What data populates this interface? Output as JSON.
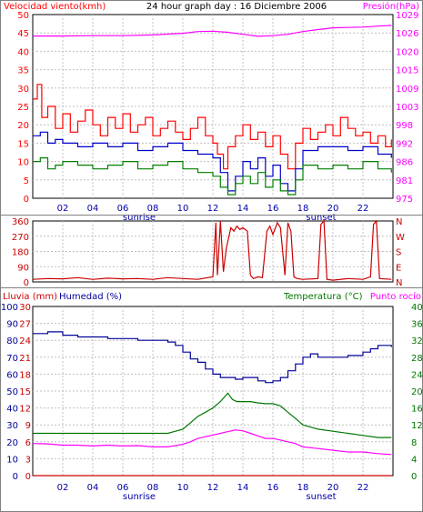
{
  "header": {
    "left_label": "Velocidad viento(kmh)",
    "title": "24 hour graph day : 16 Diciembre 2006",
    "right_label": "Presión(hPa)"
  },
  "colors": {
    "wind": "#ff0000",
    "wind_avg": "#0000cc",
    "wind_low": "#008000",
    "pressure": "#ff00ff",
    "direction": "#cc0000",
    "humidity": "#000099",
    "temperature": "#007700",
    "dewpoint": "#ff00ff",
    "rain": "#cc0000",
    "grid": "#c0c0c0",
    "time_labels": "#0000aa"
  },
  "time_axis": {
    "ticks": [
      "02",
      "04",
      "06",
      "08",
      "10",
      "12",
      "14",
      "16",
      "18",
      "20",
      "22"
    ],
    "sunrise_label": "sunrise",
    "sunset_label": "sunset"
  },
  "chart_data": [
    {
      "type": "line",
      "name": "wind-pressure",
      "ylabel_left": "Velocidad viento(kmh)",
      "ylabel_right": "Presión(hPa)",
      "ylim_left": [
        0,
        50
      ],
      "yticks_left": [
        "50",
        "45",
        "40",
        "35",
        "30",
        "25",
        "20",
        "15",
        "10",
        "5",
        "0"
      ],
      "ylim_right": [
        975,
        1029
      ],
      "yticks_right": [
        "1029",
        "1026",
        "1020",
        "1015",
        "1009",
        "1003",
        "998",
        "992",
        "986",
        "981",
        "975"
      ],
      "xlim": [
        0,
        24
      ],
      "grid": true,
      "series": [
        {
          "key": "pressure",
          "x": [
            0,
            2,
            4,
            6,
            8,
            10,
            11,
            12,
            13,
            14,
            15,
            16,
            17,
            18,
            19,
            20,
            21,
            22,
            23,
            23.9
          ],
          "values": [
            1022.7,
            1022.7,
            1022.8,
            1022.8,
            1023.0,
            1023.5,
            1024.0,
            1024.1,
            1023.8,
            1023.2,
            1022.6,
            1022.8,
            1023.2,
            1024.0,
            1024.6,
            1025.1,
            1025.2,
            1025.3,
            1025.6,
            1025.8
          ]
        },
        {
          "key": "wind",
          "x": [
            0,
            0.3,
            0.6,
            1,
            1.5,
            2,
            2.5,
            3,
            3.5,
            4,
            4.5,
            5,
            5.5,
            6,
            6.5,
            7,
            7.5,
            8,
            8.5,
            9,
            9.5,
            10,
            10.5,
            11,
            11.5,
            12,
            12.3,
            12.7,
            13,
            13.5,
            14,
            14.5,
            15,
            15.5,
            16,
            16.5,
            17,
            17.5,
            18,
            18.5,
            19,
            19.5,
            20,
            20.5,
            21,
            21.5,
            22,
            22.5,
            23,
            23.5,
            23.9
          ],
          "values": [
            27,
            31,
            22,
            25,
            19,
            23,
            18,
            21,
            24,
            20,
            17,
            22,
            19,
            23,
            18,
            20,
            22,
            17,
            19,
            21,
            18,
            16,
            19,
            22,
            17,
            15,
            12,
            8,
            14,
            17,
            20,
            16,
            18,
            14,
            17,
            12,
            8,
            15,
            19,
            16,
            18,
            20,
            17,
            22,
            19,
            17,
            18,
            15,
            17,
            14,
            16
          ]
        },
        {
          "key": "wind_avg",
          "x": [
            0,
            0.5,
            1,
            1.5,
            2,
            3,
            4,
            5,
            6,
            7,
            8,
            9,
            10,
            11,
            12,
            12.5,
            13,
            13.5,
            14,
            14.5,
            15,
            15.5,
            16,
            16.5,
            17,
            17.5,
            18,
            19,
            20,
            21,
            22,
            23,
            23.9
          ],
          "values": [
            17,
            18,
            15,
            16,
            15,
            14,
            15,
            14,
            15,
            13,
            14,
            15,
            13,
            12,
            11,
            7,
            2,
            6,
            10,
            8,
            11,
            6,
            9,
            4,
            2,
            8,
            13,
            14,
            14,
            13,
            14,
            12,
            11
          ]
        },
        {
          "key": "wind_low",
          "x": [
            0,
            0.5,
            1,
            1.5,
            2,
            3,
            4,
            5,
            6,
            7,
            8,
            9,
            10,
            11,
            12,
            12.5,
            13,
            13.5,
            14,
            14.5,
            15,
            15.5,
            16,
            16.5,
            17,
            17.5,
            18,
            19,
            20,
            21,
            22,
            23,
            23.9
          ],
          "values": [
            10,
            11,
            8,
            9,
            10,
            9,
            8,
            9,
            10,
            8,
            9,
            10,
            8,
            7,
            6,
            3,
            1,
            4,
            6,
            4,
            7,
            3,
            5,
            2,
            1,
            5,
            9,
            8,
            9,
            8,
            10,
            8,
            7
          ]
        }
      ]
    },
    {
      "type": "line",
      "name": "wind-direction",
      "ylim": [
        0,
        360
      ],
      "yticks_left": [
        "360",
        "270",
        "180",
        "90",
        "0"
      ],
      "yticks_right": [
        "N",
        "W",
        "S",
        "E",
        "N"
      ],
      "xlim": [
        0,
        24
      ],
      "grid": true,
      "series": [
        {
          "key": "direction",
          "x": [
            0,
            1,
            2,
            3,
            4,
            5,
            6,
            7,
            8,
            9,
            10,
            11,
            12,
            12.2,
            12.3,
            12.5,
            12.7,
            12.9,
            13.2,
            13.4,
            13.6,
            13.8,
            14.0,
            14.3,
            14.5,
            14.7,
            15.0,
            15.3,
            15.6,
            15.8,
            16.0,
            16.3,
            16.5,
            16.8,
            17.0,
            17.2,
            17.4,
            17.6,
            18,
            19,
            19.2,
            19.4,
            19.6,
            20,
            21,
            22,
            22.5,
            22.7,
            22.9,
            23.1,
            23.9
          ],
          "values": [
            15,
            20,
            18,
            25,
            15,
            22,
            18,
            20,
            15,
            25,
            20,
            15,
            30,
            350,
            40,
            360,
            60,
            200,
            320,
            300,
            330,
            310,
            320,
            300,
            40,
            20,
            30,
            25,
            300,
            330,
            280,
            350,
            320,
            40,
            350,
            300,
            30,
            20,
            15,
            20,
            340,
            360,
            15,
            10,
            20,
            15,
            30,
            340,
            360,
            20,
            15
          ]
        }
      ]
    },
    {
      "type": "line",
      "name": "humidity-temperature",
      "ylabel_left_1": "Lluvia (mm)",
      "ylabel_left_2": "Humedad (%)",
      "ylabel_right": "Temperatura (°C)",
      "ylabel_right_2": "Punto rocío",
      "ylim_humidity": [
        0,
        100
      ],
      "yticks_humidity": [
        "100",
        "90",
        "80",
        "70",
        "60",
        "50",
        "40",
        "30",
        "20",
        "10",
        "0"
      ],
      "ylim_rain": [
        0,
        30
      ],
      "yticks_rain": [
        "30",
        "27",
        "24",
        "21",
        "18",
        "15",
        "12",
        "9",
        "6",
        "3",
        "0"
      ],
      "ylim_temperature": [
        0,
        40
      ],
      "yticks_temperature": [
        "40",
        "36",
        "32",
        "28",
        "24",
        "20",
        "16",
        "12",
        "8",
        "4",
        "0"
      ],
      "xlim": [
        0,
        24
      ],
      "grid": true,
      "series": [
        {
          "key": "humidity",
          "x": [
            0,
            0.5,
            1,
            2,
            3,
            4,
            5,
            6,
            7,
            8,
            9,
            9.5,
            10,
            10.5,
            11,
            11.5,
            12,
            12.5,
            13,
            13.5,
            14,
            14.5,
            15,
            15.5,
            16,
            16.5,
            17,
            17.5,
            18,
            18.5,
            19,
            20,
            21,
            22,
            22.5,
            23,
            23.5,
            23.9
          ],
          "values": [
            84,
            84,
            85,
            83,
            82,
            82,
            81,
            81,
            80,
            80,
            79,
            77,
            73,
            69,
            67,
            63,
            60,
            58,
            58,
            57,
            58,
            58,
            56,
            55,
            56,
            58,
            62,
            66,
            70,
            72,
            70,
            70,
            71,
            73,
            75,
            77,
            77,
            76
          ]
        },
        {
          "key": "temperature",
          "x": [
            0,
            1,
            2,
            3,
            4,
            5,
            6,
            7,
            8,
            9,
            9.5,
            10,
            10.5,
            11,
            11.5,
            12,
            12.5,
            13,
            13.3,
            13.6,
            14,
            14.5,
            15,
            15.5,
            16,
            16.5,
            17,
            17.5,
            18,
            19,
            20,
            21,
            22,
            23,
            23.9
          ],
          "values": [
            10,
            10,
            10,
            10,
            10,
            10,
            10,
            10,
            10,
            10,
            10.5,
            11,
            12.5,
            14,
            15,
            16,
            17.5,
            19.5,
            18,
            17.5,
            17.5,
            17.5,
            17.2,
            17,
            17,
            16.5,
            15,
            13.5,
            12,
            11,
            10.5,
            10,
            9.5,
            9,
            9
          ]
        },
        {
          "key": "dewpoint",
          "x": [
            0,
            1,
            2,
            3,
            4,
            5,
            6,
            7,
            8,
            9,
            10,
            10.5,
            11,
            11.5,
            12,
            12.5,
            13,
            13.5,
            14,
            14.5,
            15,
            15.5,
            16,
            16.5,
            17,
            17.5,
            18,
            19,
            20,
            21,
            22,
            23,
            23.9
          ],
          "values": [
            7.6,
            7.5,
            7.2,
            7.2,
            7.0,
            7.2,
            7.0,
            7.1,
            6.8,
            6.8,
            7.4,
            8.0,
            8.8,
            9.2,
            9.6,
            10.0,
            10.4,
            10.8,
            10.6,
            10.0,
            9.4,
            8.8,
            8.8,
            8.4,
            8.0,
            7.6,
            6.8,
            6.4,
            6.0,
            5.6,
            5.6,
            5.2,
            5.0
          ]
        },
        {
          "key": "rain",
          "x": [
            0,
            23.9
          ],
          "values": [
            0,
            0
          ]
        }
      ]
    }
  ]
}
